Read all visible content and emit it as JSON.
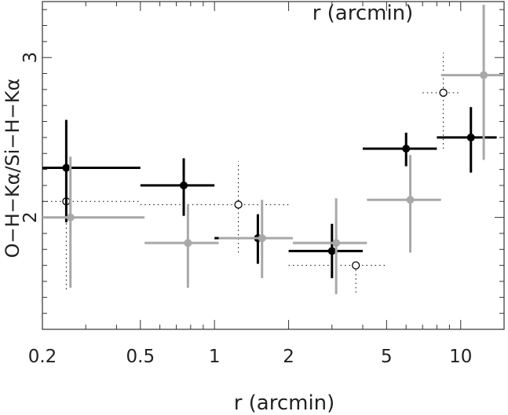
{
  "chart_data": {
    "type": "scatter",
    "xlabel": "r (arcmin)",
    "top_label": "r (arcmin)",
    "ylabel": "O−H−Kα/Si−H−Kα",
    "x_scale": "log",
    "xlim": [
      0.2,
      15
    ],
    "ylim": [
      1.3,
      3.35
    ],
    "x_ticks": [
      0.2,
      0.5,
      1,
      2,
      5,
      10
    ],
    "x_tick_labels": [
      "0.2",
      "0.5",
      "1",
      "2",
      "5",
      "10"
    ],
    "y_ticks": [
      2,
      3
    ],
    "y_tick_labels": [
      "2",
      "3"
    ],
    "grid": false,
    "legend": "none",
    "series": [
      {
        "style": "black-filled",
        "color": "#000000",
        "points": [
          {
            "x": 0.25,
            "y": 2.31,
            "xerr": [
              0.2,
              0.5
            ],
            "yerr": [
              1.97,
              2.61
            ]
          },
          {
            "x": 0.75,
            "y": 2.2,
            "xerr": [
              0.5,
              1.0
            ],
            "yerr": [
              2.01,
              2.37
            ]
          },
          {
            "x": 1.5,
            "y": 1.87,
            "xerr": [
              1.0,
              2.0
            ],
            "yerr": [
              1.71,
              2.02
            ]
          },
          {
            "x": 3.0,
            "y": 1.79,
            "xerr": [
              2.0,
              4.0
            ],
            "yerr": [
              1.62,
              1.96
            ]
          },
          {
            "x": 6.0,
            "y": 2.43,
            "xerr": [
              4.0,
              8.0
            ],
            "yerr": [
              2.32,
              2.53
            ]
          },
          {
            "x": 11.0,
            "y": 2.5,
            "xerr": [
              8.0,
              14.0
            ],
            "yerr": [
              2.28,
              2.69
            ]
          }
        ]
      },
      {
        "style": "gray-filled",
        "color": "#a8a8a8",
        "points": [
          {
            "x": 0.26,
            "y": 2.0,
            "xerr": [
              0.2,
              0.52
            ],
            "yerr": [
              1.56,
              2.38
            ]
          },
          {
            "x": 0.78,
            "y": 1.84,
            "xerr": [
              0.52,
              1.04
            ],
            "yerr": [
              1.56,
              2.08
            ]
          },
          {
            "x": 1.56,
            "y": 1.87,
            "xerr": [
              1.04,
              2.08
            ],
            "yerr": [
              1.62,
              2.11
            ]
          },
          {
            "x": 3.12,
            "y": 1.84,
            "xerr": [
              2.08,
              4.16
            ],
            "yerr": [
              1.52,
              2.12
            ]
          },
          {
            "x": 6.24,
            "y": 2.11,
            "xerr": [
              4.16,
              8.32
            ],
            "yerr": [
              1.78,
              2.39
            ]
          },
          {
            "x": 12.4,
            "y": 2.89,
            "xerr": [
              8.32,
              15.0
            ],
            "yerr": [
              2.36,
              3.33
            ]
          }
        ]
      },
      {
        "style": "open-dotted",
        "color": "#000000",
        "points": [
          {
            "x": 0.25,
            "y": 2.1,
            "xerr": [
              0.2,
              0.5
            ],
            "yerr": [
              1.55,
              2.1
            ]
          },
          {
            "x": 1.25,
            "y": 2.08,
            "xerr": [
              0.5,
              2.0
            ],
            "yerr": [
              1.78,
              2.35
            ]
          },
          {
            "x": 3.75,
            "y": 1.7,
            "xerr": [
              2.0,
              5.0
            ],
            "yerr": [
              1.53,
              1.7
            ]
          },
          {
            "x": 8.5,
            "y": 2.78,
            "xerr": [
              7.0,
              10.0
            ],
            "yerr": [
              2.43,
              3.03
            ]
          }
        ]
      }
    ]
  }
}
